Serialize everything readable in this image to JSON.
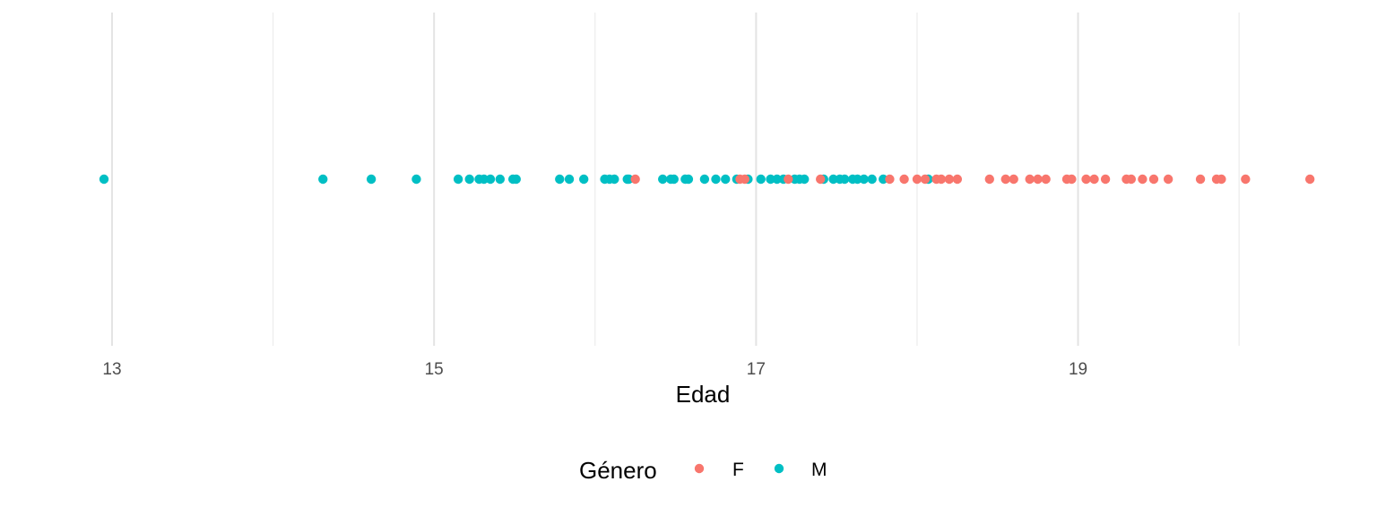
{
  "chart_data": {
    "type": "scatter",
    "xlabel": "Edad",
    "xlim": [
      12.95,
      20.4
    ],
    "x_ticks": [
      13,
      15,
      17,
      19
    ],
    "x_minor_ticks": [
      14,
      16,
      18,
      20
    ],
    "grid": true,
    "legend": {
      "title": "Género",
      "position": "bottom",
      "entries": [
        "F",
        "M"
      ]
    },
    "series": [
      {
        "name": "F",
        "color": "#F8766D",
        "x": [
          16.25,
          16.9,
          16.93,
          17.2,
          17.4,
          17.83,
          17.92,
          18.0,
          18.05,
          18.12,
          18.15,
          18.2,
          18.25,
          18.45,
          18.55,
          18.6,
          18.7,
          18.75,
          18.8,
          18.93,
          18.96,
          19.05,
          19.1,
          19.17,
          19.3,
          19.33,
          19.4,
          19.47,
          19.56,
          19.76,
          19.86,
          19.89,
          20.04,
          20.44
        ]
      },
      {
        "name": "M",
        "color": "#00BFC4",
        "x": [
          12.95,
          14.31,
          14.61,
          14.89,
          15.15,
          15.22,
          15.28,
          15.31,
          15.35,
          15.41,
          15.49,
          15.51,
          15.78,
          15.84,
          15.93,
          16.06,
          16.09,
          16.12,
          16.2,
          16.21,
          16.42,
          16.47,
          16.49,
          16.56,
          16.58,
          16.68,
          16.75,
          16.81,
          16.88,
          16.95,
          17.03,
          17.09,
          17.13,
          17.17,
          17.24,
          17.27,
          17.3,
          17.42,
          17.48,
          17.52,
          17.55,
          17.6,
          17.63,
          17.67,
          17.72,
          17.79,
          18.07
        ]
      }
    ]
  }
}
